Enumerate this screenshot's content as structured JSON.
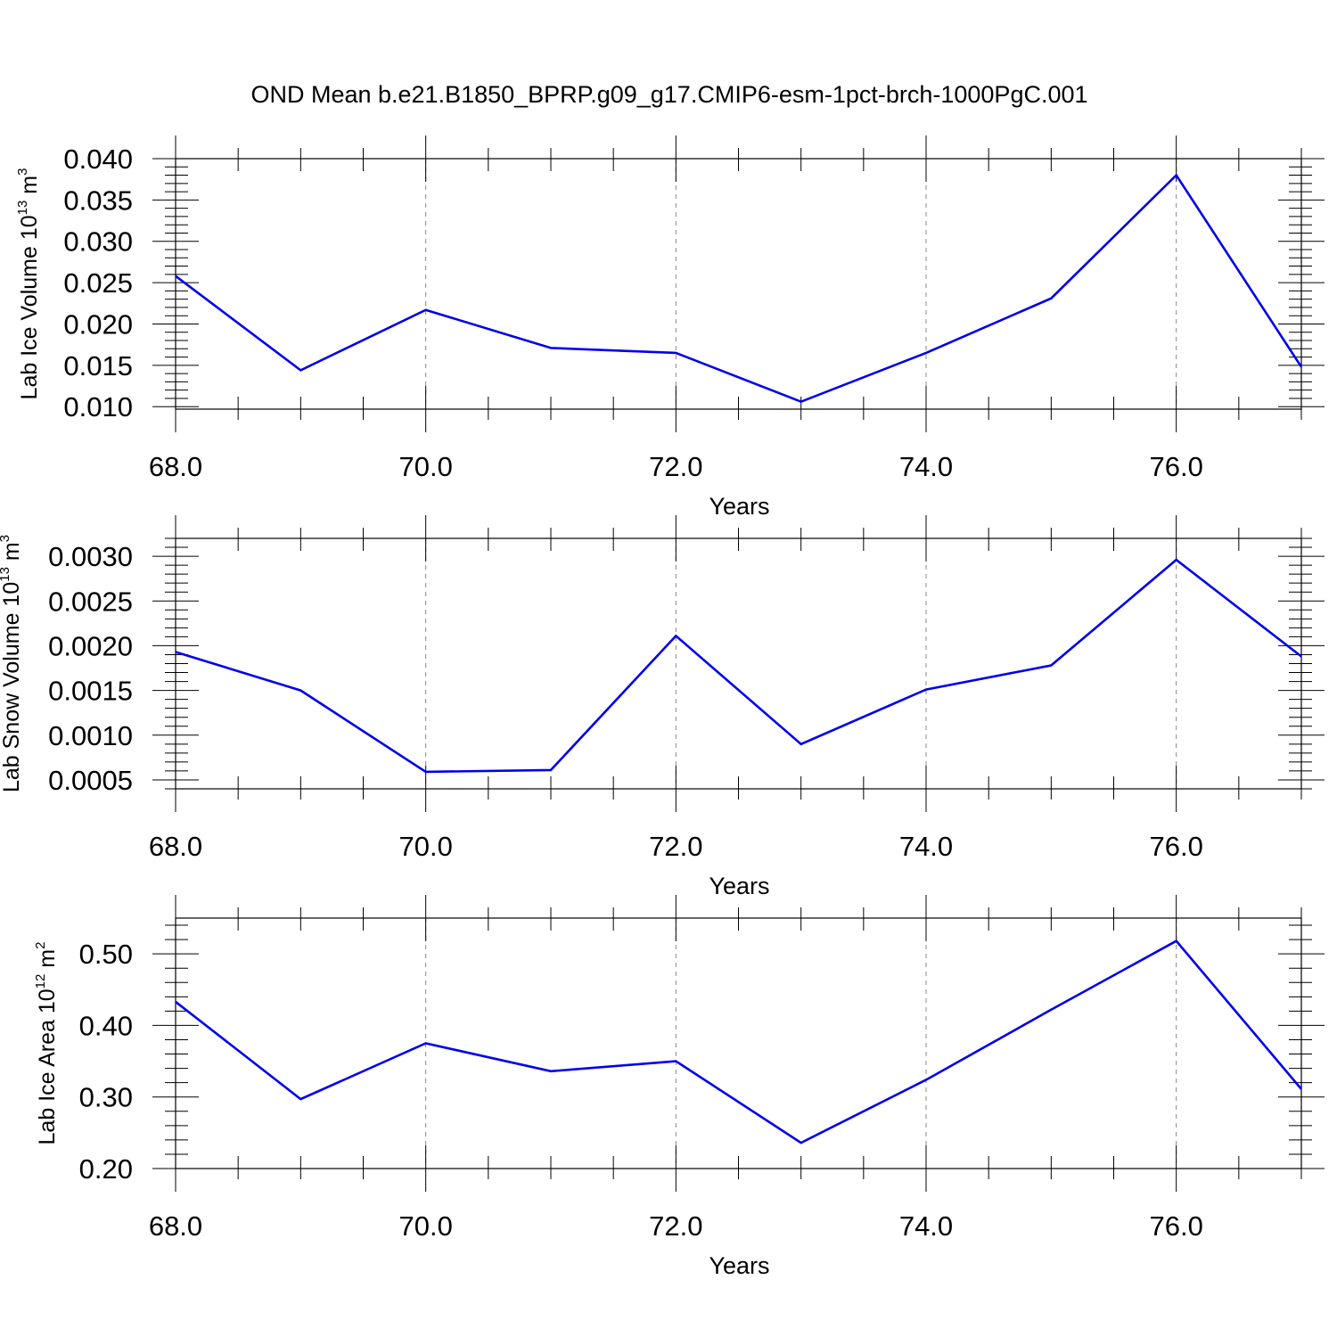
{
  "title": "OND Mean b.e21.B1850_BPRP.g09_g17.CMIP6-esm-1pct-brch-1000PgC.001",
  "colors": {
    "line": "#0000ee",
    "axis": "#000000",
    "grid": "#888888"
  },
  "chart_data": [
    {
      "type": "line",
      "xlabel": "Years",
      "ylabel": {
        "base": "Lab Ice Volume 10",
        "exp": "13",
        "unit": " m",
        "unit_exp": "3"
      },
      "xlim": [
        68,
        77
      ],
      "ylim": [
        0.0097,
        0.04
      ],
      "x_ticks": [
        68,
        70,
        72,
        74,
        76
      ],
      "x_tick_labels": [
        "68.0",
        "70.0",
        "72.0",
        "74.0",
        "76.0"
      ],
      "x_minor_step": 0.5,
      "y_ticks": [
        0.01,
        0.015,
        0.02,
        0.025,
        0.03,
        0.035,
        0.04
      ],
      "y_tick_labels": [
        "0.010",
        "0.015",
        "0.020",
        "0.025",
        "0.030",
        "0.035",
        "0.040"
      ],
      "y_minor_step": 0.001,
      "grid_x": true,
      "x": [
        68,
        69,
        70,
        71,
        72,
        73,
        74,
        75,
        76,
        77
      ],
      "values": [
        0.0258,
        0.0144,
        0.0217,
        0.0171,
        0.0165,
        0.0106,
        0.0165,
        0.0231,
        0.038,
        0.0148
      ]
    },
    {
      "type": "line",
      "xlabel": "Years",
      "ylabel": {
        "base": "Lab Snow Volume 10",
        "exp": "13",
        "unit": " m",
        "unit_exp": "3"
      },
      "xlim": [
        68,
        77
      ],
      "ylim": [
        0.0004,
        0.0032
      ],
      "x_ticks": [
        68,
        70,
        72,
        74,
        76
      ],
      "x_tick_labels": [
        "68.0",
        "70.0",
        "72.0",
        "74.0",
        "76.0"
      ],
      "x_minor_step": 0.5,
      "y_ticks": [
        0.0005,
        0.001,
        0.0015,
        0.002,
        0.0025,
        0.003
      ],
      "y_tick_labels": [
        "0.0005",
        "0.0010",
        "0.0015",
        "0.0020",
        "0.0025",
        "0.0030"
      ],
      "y_minor_step": 0.0001,
      "grid_x": true,
      "x": [
        68,
        69,
        70,
        71,
        72,
        73,
        74,
        75,
        76,
        77
      ],
      "values": [
        0.00193,
        0.0015,
        0.00059,
        0.00061,
        0.00211,
        0.0009,
        0.00151,
        0.00178,
        0.00296,
        0.00188
      ]
    },
    {
      "type": "line",
      "xlabel": "Years",
      "ylabel": {
        "base": "Lab Ice Area 10",
        "exp": "12",
        "unit": " m",
        "unit_exp": "2"
      },
      "xlim": [
        68,
        77
      ],
      "ylim": [
        0.2,
        0.55
      ],
      "x_ticks": [
        68,
        70,
        72,
        74,
        76
      ],
      "x_tick_labels": [
        "68.0",
        "70.0",
        "72.0",
        "74.0",
        "76.0"
      ],
      "x_minor_step": 0.5,
      "y_ticks": [
        0.2,
        0.3,
        0.4,
        0.5
      ],
      "y_tick_labels": [
        "0.20",
        "0.30",
        "0.40",
        "0.50"
      ],
      "y_minor_step": 0.02,
      "grid_x": true,
      "x": [
        68,
        69,
        70,
        71,
        72,
        73,
        74,
        75,
        76,
        77
      ],
      "values": [
        0.433,
        0.297,
        0.375,
        0.336,
        0.35,
        0.236,
        0.324,
        0.422,
        0.518,
        0.311
      ]
    }
  ]
}
